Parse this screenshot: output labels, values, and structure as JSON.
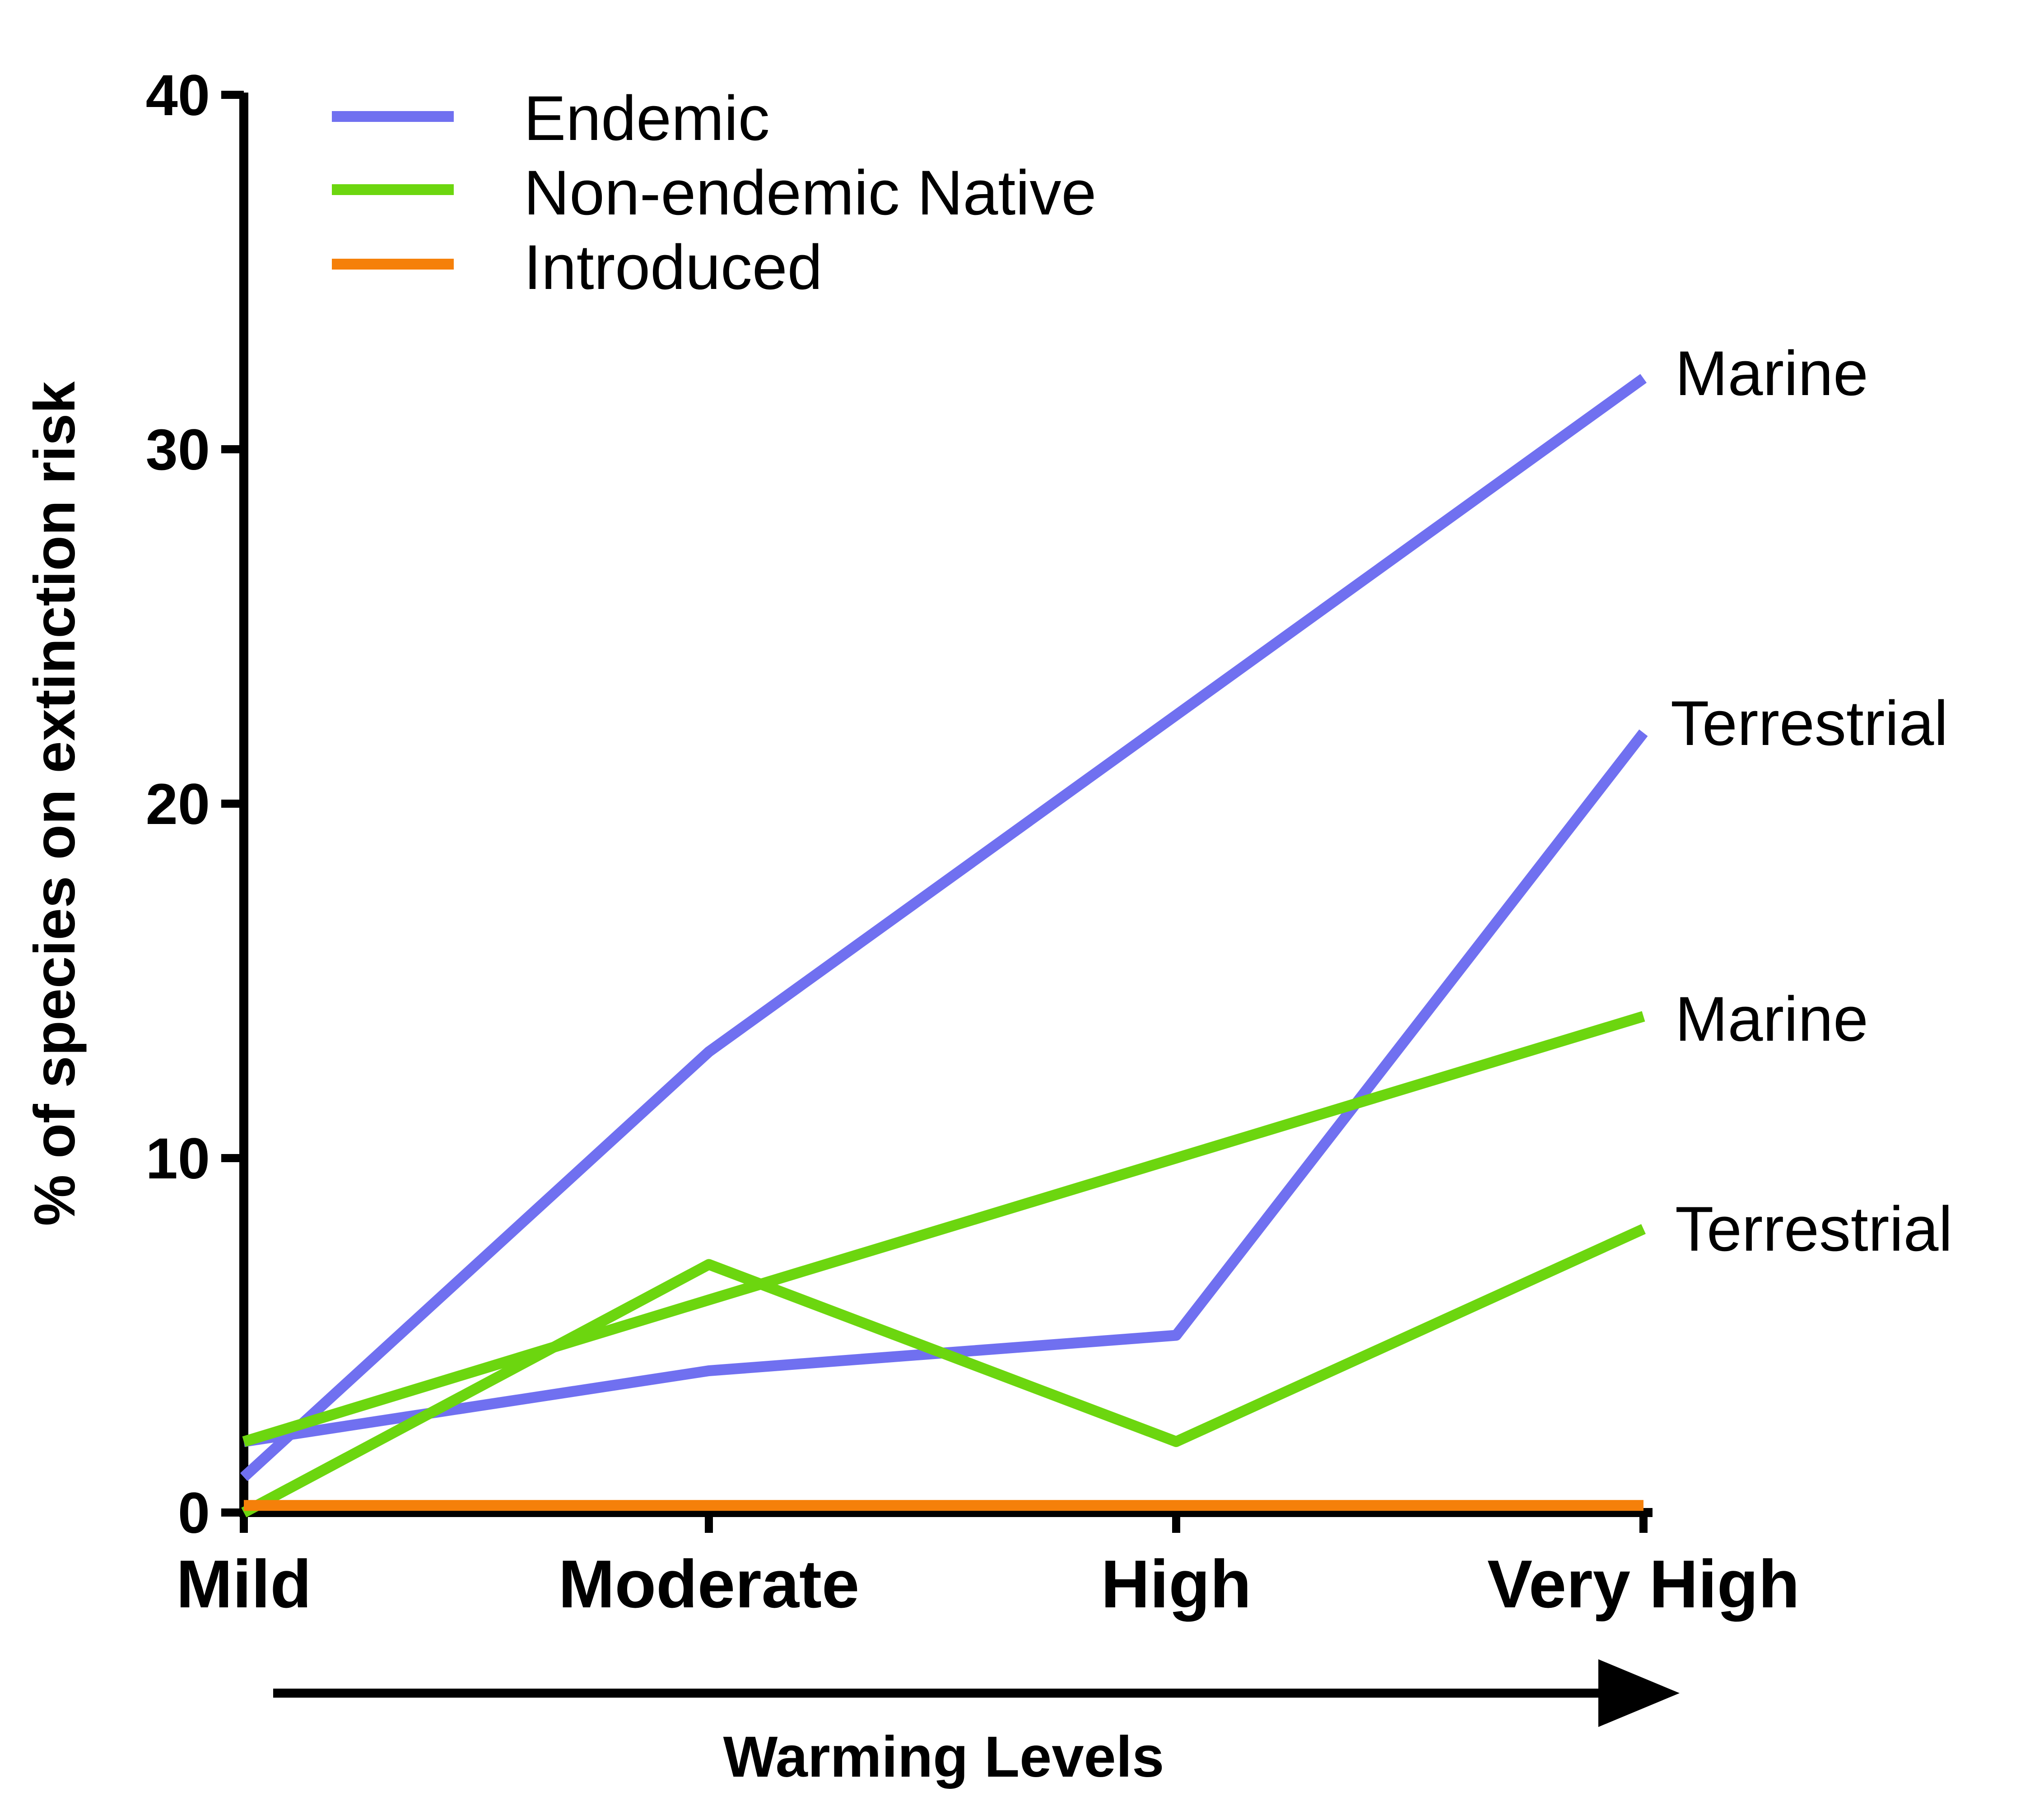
{
  "chart_data": {
    "type": "line",
    "title": "",
    "categories": [
      "Mild",
      "Moderate",
      "High",
      "Very High"
    ],
    "xlabel": "Warming Levels",
    "ylabel": "% of species on extinction risk",
    "ylim": [
      0,
      40
    ],
    "yticks": [
      "0",
      "10",
      "20",
      "30",
      "40"
    ],
    "grid": false,
    "legend_position": "top-left",
    "legend": [
      {
        "name": "Endemic",
        "color": "#7070f0"
      },
      {
        "name": "Non-endemic Native",
        "color": "#6cd60f"
      },
      {
        "name": "Introduced",
        "color": "#f5800a"
      }
    ],
    "series": [
      {
        "group": "Endemic",
        "label": "Marine",
        "color": "#7070f0",
        "values": [
          1,
          13,
          22.5,
          32
        ]
      },
      {
        "group": "Endemic",
        "label": "Terrestrial",
        "color": "#7070f0",
        "values": [
          2,
          4,
          5,
          22
        ]
      },
      {
        "group": "Non-endemic Native",
        "label": "Marine",
        "color": "#6cd60f",
        "values": [
          2,
          6,
          10,
          14
        ]
      },
      {
        "group": "Non-endemic Native",
        "label": "Terrestrial",
        "color": "#6cd60f",
        "values": [
          0,
          7,
          2,
          8
        ]
      },
      {
        "group": "Introduced",
        "label": "",
        "color": "#f5800a",
        "values": [
          0.2,
          0.2,
          0.2,
          0.2
        ]
      }
    ]
  }
}
